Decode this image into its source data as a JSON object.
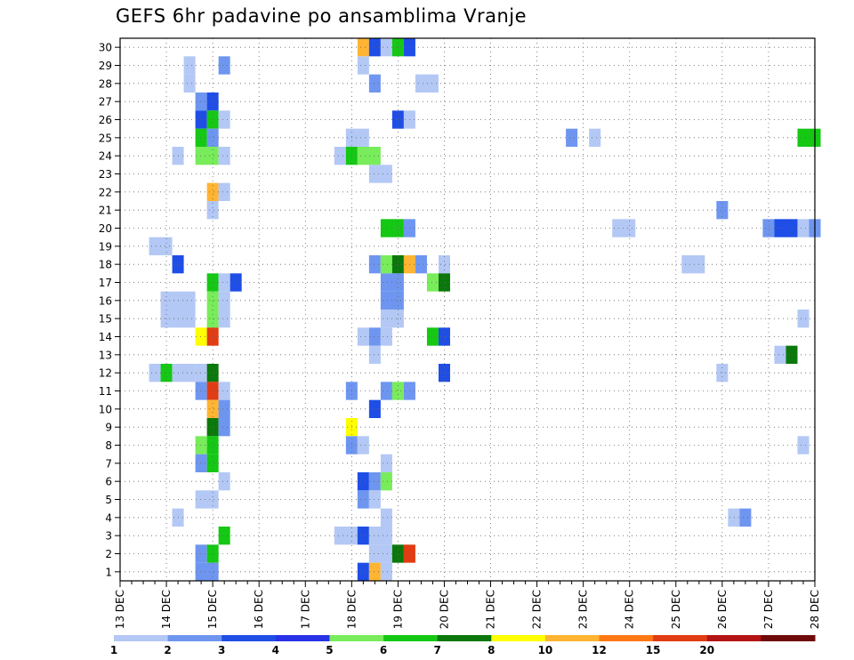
{
  "chart_data": {
    "type": "heatmap",
    "title": "GEFS 6hr padavine po ansamblima Vranje",
    "xlabel": "",
    "ylabel": "",
    "x_tick_labels": [
      "13 DEC",
      "14 DEC",
      "15 DEC",
      "16 DEC",
      "17 DEC",
      "18 DEC",
      "19 DEC",
      "20 DEC",
      "21 DEC",
      "22 DEC",
      "23 DEC",
      "24 DEC",
      "25 DEC",
      "26 DEC",
      "27 DEC",
      "28 DEC"
    ],
    "x_unit": "6h steps from 13 DEC 00z",
    "ylim": [
      0,
      30
    ],
    "y_tick_labels": [
      "1",
      "2",
      "3",
      "4",
      "5",
      "6",
      "7",
      "8",
      "9",
      "10",
      "11",
      "12",
      "13",
      "14",
      "15",
      "16",
      "17",
      "18",
      "19",
      "20",
      "21",
      "22",
      "23",
      "24",
      "25",
      "26",
      "27",
      "28",
      "29",
      "30"
    ],
    "grid": true,
    "colorbar": {
      "orientation": "horizontal",
      "placement": "bottom",
      "levels": [
        "1",
        "2",
        "3",
        "4",
        "5",
        "6",
        "7",
        "8",
        "10",
        "12",
        "15",
        "20",
        "28"
      ],
      "colors": [
        "#b4c8f5",
        "#6e96f0",
        "#1e4ee6",
        "#2832e6",
        "#78ec5a",
        "#14c814",
        "#0a780a",
        "#ffff00",
        "#ffb432",
        "#ff7814",
        "#e13c14",
        "#b41414",
        "#6e0a0a"
      ]
    },
    "cells": [
      {
        "member": 30,
        "step": [
          21,
          1
        ],
        "color": "#ffb432"
      },
      {
        "member": 30,
        "step": [
          22,
          1
        ],
        "color": "#1e4ee6"
      },
      {
        "member": 30,
        "step": [
          23,
          1
        ],
        "color": "#b4c8f5"
      },
      {
        "member": 30,
        "step": [
          24,
          1
        ],
        "color": "#14c814"
      },
      {
        "member": 30,
        "step": [
          25,
          1
        ],
        "color": "#1e4ee6"
      },
      {
        "member": 29,
        "step": [
          6,
          1
        ],
        "color": "#b4c8f5"
      },
      {
        "member": 29,
        "step": [
          9,
          1
        ],
        "color": "#6e96f0"
      },
      {
        "member": 29,
        "step": [
          21,
          1
        ],
        "color": "#b4c8f5"
      },
      {
        "member": 28,
        "step": [
          6,
          1
        ],
        "color": "#b4c8f5"
      },
      {
        "member": 28,
        "step": [
          22,
          1
        ],
        "color": "#6e96f0"
      },
      {
        "member": 28,
        "step": [
          26,
          2
        ],
        "color": "#b4c8f5"
      },
      {
        "member": 27,
        "step": [
          7,
          1
        ],
        "color": "#6e96f0"
      },
      {
        "member": 27,
        "step": [
          8,
          1
        ],
        "color": "#1e4ee6"
      },
      {
        "member": 26,
        "step": [
          7,
          1
        ],
        "color": "#1e4ee6"
      },
      {
        "member": 26,
        "step": [
          8,
          1
        ],
        "color": "#14c814"
      },
      {
        "member": 26,
        "step": [
          9,
          1
        ],
        "color": "#b4c8f5"
      },
      {
        "member": 26,
        "step": [
          24,
          1
        ],
        "color": "#1e4ee6"
      },
      {
        "member": 26,
        "step": [
          25,
          1
        ],
        "color": "#b4c8f5"
      },
      {
        "member": 25,
        "step": [
          7,
          1
        ],
        "color": "#14c814"
      },
      {
        "member": 25,
        "step": [
          8,
          1
        ],
        "color": "#6e96f0"
      },
      {
        "member": 25,
        "step": [
          20,
          2
        ],
        "color": "#b4c8f5"
      },
      {
        "member": 25,
        "step": [
          39,
          1
        ],
        "color": "#6e96f0"
      },
      {
        "member": 25,
        "step": [
          41,
          1
        ],
        "color": "#b4c8f5"
      },
      {
        "member": 25,
        "step": [
          59,
          2
        ],
        "color": "#14c814"
      },
      {
        "member": 24,
        "step": [
          5,
          1
        ],
        "color": "#b4c8f5"
      },
      {
        "member": 24,
        "step": [
          7,
          2
        ],
        "color": "#78ec5a"
      },
      {
        "member": 24,
        "step": [
          9,
          1
        ],
        "color": "#b4c8f5"
      },
      {
        "member": 24,
        "step": [
          19,
          1
        ],
        "color": "#b4c8f5"
      },
      {
        "member": 24,
        "step": [
          20,
          1
        ],
        "color": "#14c814"
      },
      {
        "member": 24,
        "step": [
          21,
          2
        ],
        "color": "#78ec5a"
      },
      {
        "member": 23,
        "step": [
          22,
          2
        ],
        "color": "#b4c8f5"
      },
      {
        "member": 22,
        "step": [
          8,
          1
        ],
        "color": "#ffb432"
      },
      {
        "member": 22,
        "step": [
          9,
          1
        ],
        "color": "#b4c8f5"
      },
      {
        "member": 21,
        "step": [
          8,
          1
        ],
        "color": "#b4c8f5"
      },
      {
        "member": 21,
        "step": [
          52,
          1
        ],
        "color": "#6e96f0"
      },
      {
        "member": 20,
        "step": [
          23,
          2
        ],
        "color": "#14c814"
      },
      {
        "member": 20,
        "step": [
          25,
          1
        ],
        "color": "#6e96f0"
      },
      {
        "member": 20,
        "step": [
          43,
          2
        ],
        "color": "#b4c8f5"
      },
      {
        "member": 20,
        "step": [
          56,
          1
        ],
        "color": "#6e96f0"
      },
      {
        "member": 20,
        "step": [
          57,
          2
        ],
        "color": "#1e4ee6"
      },
      {
        "member": 20,
        "step": [
          59,
          1
        ],
        "color": "#b4c8f5"
      },
      {
        "member": 20,
        "step": [
          60,
          1
        ],
        "color": "#6e96f0"
      },
      {
        "member": 19,
        "step": [
          3,
          2
        ],
        "color": "#b4c8f5"
      },
      {
        "member": 18,
        "step": [
          5,
          1
        ],
        "color": "#1e4ee6"
      },
      {
        "member": 18,
        "step": [
          22,
          1
        ],
        "color": "#6e96f0"
      },
      {
        "member": 18,
        "step": [
          23,
          1
        ],
        "color": "#78ec5a"
      },
      {
        "member": 18,
        "step": [
          24,
          1
        ],
        "color": "#0a780a"
      },
      {
        "member": 18,
        "step": [
          25,
          1
        ],
        "color": "#ffb432"
      },
      {
        "member": 18,
        "step": [
          26,
          1
        ],
        "color": "#6e96f0"
      },
      {
        "member": 18,
        "step": [
          28,
          1
        ],
        "color": "#b4c8f5"
      },
      {
        "member": 18,
        "step": [
          49,
          2
        ],
        "color": "#b4c8f5"
      },
      {
        "member": 17,
        "step": [
          8,
          1
        ],
        "color": "#14c814"
      },
      {
        "member": 17,
        "step": [
          9,
          1
        ],
        "color": "#b4c8f5"
      },
      {
        "member": 17,
        "step": [
          10,
          1
        ],
        "color": "#1e4ee6"
      },
      {
        "member": 17,
        "step": [
          23,
          2
        ],
        "color": "#6e96f0"
      },
      {
        "member": 17,
        "step": [
          27,
          1
        ],
        "color": "#78ec5a"
      },
      {
        "member": 17,
        "step": [
          28,
          1
        ],
        "color": "#0a780a"
      },
      {
        "member": 16,
        "step": [
          4,
          3
        ],
        "color": "#b4c8f5"
      },
      {
        "member": 16,
        "step": [
          8,
          1
        ],
        "color": "#78ec5a"
      },
      {
        "member": 16,
        "step": [
          9,
          1
        ],
        "color": "#b4c8f5"
      },
      {
        "member": 16,
        "step": [
          23,
          2
        ],
        "color": "#6e96f0"
      },
      {
        "member": 15,
        "step": [
          4,
          3
        ],
        "color": "#b4c8f5"
      },
      {
        "member": 15,
        "step": [
          8,
          1
        ],
        "color": "#78ec5a"
      },
      {
        "member": 15,
        "step": [
          9,
          1
        ],
        "color": "#b4c8f5"
      },
      {
        "member": 15,
        "step": [
          23,
          2
        ],
        "color": "#b4c8f5"
      },
      {
        "member": 15,
        "step": [
          59,
          1
        ],
        "color": "#b4c8f5"
      },
      {
        "member": 14,
        "step": [
          7,
          1
        ],
        "color": "#ffff00"
      },
      {
        "member": 14,
        "step": [
          8,
          1
        ],
        "color": "#e13c14"
      },
      {
        "member": 14,
        "step": [
          21,
          1
        ],
        "color": "#b4c8f5"
      },
      {
        "member": 14,
        "step": [
          22,
          1
        ],
        "color": "#6e96f0"
      },
      {
        "member": 14,
        "step": [
          23,
          1
        ],
        "color": "#b4c8f5"
      },
      {
        "member": 14,
        "step": [
          27,
          1
        ],
        "color": "#14c814"
      },
      {
        "member": 14,
        "step": [
          28,
          1
        ],
        "color": "#1e4ee6"
      },
      {
        "member": 13,
        "step": [
          22,
          1
        ],
        "color": "#b4c8f5"
      },
      {
        "member": 13,
        "step": [
          57,
          1
        ],
        "color": "#b4c8f5"
      },
      {
        "member": 13,
        "step": [
          58,
          1
        ],
        "color": "#0a780a"
      },
      {
        "member": 12,
        "step": [
          3,
          1
        ],
        "color": "#b4c8f5"
      },
      {
        "member": 12,
        "step": [
          4,
          1
        ],
        "color": "#14c814"
      },
      {
        "member": 12,
        "step": [
          5,
          2
        ],
        "color": "#b4c8f5"
      },
      {
        "member": 12,
        "step": [
          7,
          1
        ],
        "color": "#b4c8f5"
      },
      {
        "member": 12,
        "step": [
          8,
          1
        ],
        "color": "#0a780a"
      },
      {
        "member": 12,
        "step": [
          28,
          1
        ],
        "color": "#1e4ee6"
      },
      {
        "member": 12,
        "step": [
          52,
          1
        ],
        "color": "#b4c8f5"
      },
      {
        "member": 11,
        "step": [
          7,
          1
        ],
        "color": "#6e96f0"
      },
      {
        "member": 11,
        "step": [
          8,
          1
        ],
        "color": "#e13c14"
      },
      {
        "member": 11,
        "step": [
          9,
          1
        ],
        "color": "#b4c8f5"
      },
      {
        "member": 11,
        "step": [
          20,
          1
        ],
        "color": "#6e96f0"
      },
      {
        "member": 11,
        "step": [
          23,
          1
        ],
        "color": "#6e96f0"
      },
      {
        "member": 11,
        "step": [
          24,
          1
        ],
        "color": "#78ec5a"
      },
      {
        "member": 11,
        "step": [
          25,
          1
        ],
        "color": "#6e96f0"
      },
      {
        "member": 10,
        "step": [
          8,
          1
        ],
        "color": "#ffb432"
      },
      {
        "member": 10,
        "step": [
          9,
          1
        ],
        "color": "#6e96f0"
      },
      {
        "member": 10,
        "step": [
          22,
          1
        ],
        "color": "#1e4ee6"
      },
      {
        "member": 9,
        "step": [
          8,
          1
        ],
        "color": "#0a780a"
      },
      {
        "member": 9,
        "step": [
          9,
          1
        ],
        "color": "#6e96f0"
      },
      {
        "member": 9,
        "step": [
          20,
          1
        ],
        "color": "#ffff00"
      },
      {
        "member": 8,
        "step": [
          7,
          1
        ],
        "color": "#78ec5a"
      },
      {
        "member": 8,
        "step": [
          8,
          1
        ],
        "color": "#14c814"
      },
      {
        "member": 8,
        "step": [
          20,
          1
        ],
        "color": "#6e96f0"
      },
      {
        "member": 8,
        "step": [
          21,
          1
        ],
        "color": "#b4c8f5"
      },
      {
        "member": 8,
        "step": [
          59,
          1
        ],
        "color": "#b4c8f5"
      },
      {
        "member": 7,
        "step": [
          7,
          1
        ],
        "color": "#6e96f0"
      },
      {
        "member": 7,
        "step": [
          8,
          1
        ],
        "color": "#14c814"
      },
      {
        "member": 7,
        "step": [
          23,
          1
        ],
        "color": "#b4c8f5"
      },
      {
        "member": 6,
        "step": [
          9,
          1
        ],
        "color": "#b4c8f5"
      },
      {
        "member": 6,
        "step": [
          21,
          1
        ],
        "color": "#1e4ee6"
      },
      {
        "member": 6,
        "step": [
          22,
          1
        ],
        "color": "#6e96f0"
      },
      {
        "member": 6,
        "step": [
          23,
          1
        ],
        "color": "#78ec5a"
      },
      {
        "member": 5,
        "step": [
          7,
          2
        ],
        "color": "#b4c8f5"
      },
      {
        "member": 5,
        "step": [
          21,
          1
        ],
        "color": "#6e96f0"
      },
      {
        "member": 5,
        "step": [
          22,
          1
        ],
        "color": "#b4c8f5"
      },
      {
        "member": 4,
        "step": [
          5,
          1
        ],
        "color": "#b4c8f5"
      },
      {
        "member": 4,
        "step": [
          23,
          1
        ],
        "color": "#b4c8f5"
      },
      {
        "member": 4,
        "step": [
          53,
          1
        ],
        "color": "#b4c8f5"
      },
      {
        "member": 4,
        "step": [
          54,
          1
        ],
        "color": "#6e96f0"
      },
      {
        "member": 3,
        "step": [
          9,
          1
        ],
        "color": "#14c814"
      },
      {
        "member": 3,
        "step": [
          19,
          2
        ],
        "color": "#b4c8f5"
      },
      {
        "member": 3,
        "step": [
          21,
          1
        ],
        "color": "#1e4ee6"
      },
      {
        "member": 3,
        "step": [
          22,
          2
        ],
        "color": "#b4c8f5"
      },
      {
        "member": 2,
        "step": [
          7,
          1
        ],
        "color": "#6e96f0"
      },
      {
        "member": 2,
        "step": [
          8,
          1
        ],
        "color": "#14c814"
      },
      {
        "member": 2,
        "step": [
          22,
          2
        ],
        "color": "#b4c8f5"
      },
      {
        "member": 2,
        "step": [
          24,
          1
        ],
        "color": "#0a780a"
      },
      {
        "member": 2,
        "step": [
          25,
          1
        ],
        "color": "#e13c14"
      },
      {
        "member": 1,
        "step": [
          7,
          2
        ],
        "color": "#6e96f0"
      },
      {
        "member": 1,
        "step": [
          21,
          1
        ],
        "color": "#1e4ee6"
      },
      {
        "member": 1,
        "step": [
          22,
          1
        ],
        "color": "#ffb432"
      },
      {
        "member": 1,
        "step": [
          23,
          1
        ],
        "color": "#b4c8f5"
      }
    ]
  }
}
